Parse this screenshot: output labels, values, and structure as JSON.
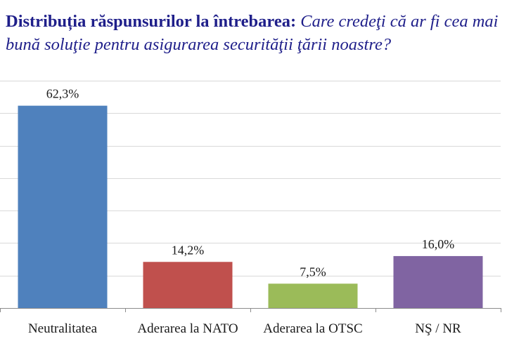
{
  "title": {
    "bold": "Distribuția răspunsurilor la întrebarea: ",
    "italic": "Care credeţi că ar fi cea mai bună soluţie pentru asigurarea securităţii ţării noastre?"
  },
  "chart_data": {
    "type": "bar",
    "categories": [
      "Neutralitatea",
      "Aderarea la NATO",
      "Aderarea la OTSC",
      "NŞ / NR"
    ],
    "values": [
      62.3,
      14.2,
      7.5,
      16.0
    ],
    "value_labels": [
      "62,3%",
      "14,2%",
      "7,5%",
      "16,0%"
    ],
    "colors": [
      "#4f81bd",
      "#c0504d",
      "#9bbb59",
      "#8064a2"
    ],
    "ylim": [
      0,
      70
    ],
    "grid": true,
    "legend": "none"
  }
}
